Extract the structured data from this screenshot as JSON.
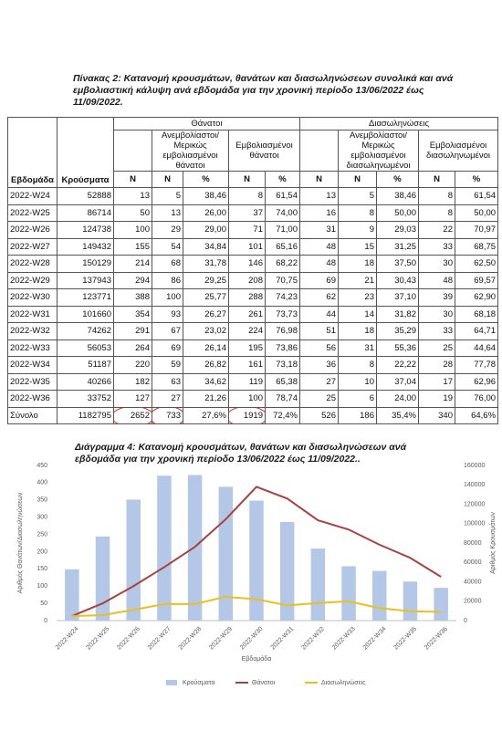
{
  "document": {
    "table_title": "Πίνακας 2: Κατανομή κρουσμάτων, θανάτων και διασωληνώσεων  συνολικά και ανά εμβολιαστική κάλυψη ανά εβδομάδα για την χρονική περίοδο 13/06/2022 έως 11/09/2022.",
    "table": {
      "header": {
        "week": "Εβδομάδα",
        "cases": "Κρούσματα",
        "deaths": "Θάνατοι",
        "intubations": "Διασωληνώσεις",
        "sub": [
          "Ανεμβολίαστοι/ Μερικώς εμβολιασμένοι θάνατοι",
          "Εμβολιασμένοι θάνατοι",
          "Ανεμβολίαστοι/ Μερικώς εμβολιασμένοι διασωληνωμένοι",
          "Εμβολιασμένοι διασωληνωμένοι"
        ],
        "units": [
          "N",
          "N",
          "%",
          "N",
          "%",
          "N",
          "N",
          "%",
          "N",
          "%"
        ]
      },
      "rows": [
        [
          "2022-W24",
          "52888",
          "13",
          "5",
          "38,46",
          "8",
          "61,54",
          "13",
          "5",
          "38,46",
          "8",
          "61,54"
        ],
        [
          "2022-W25",
          "86714",
          "50",
          "13",
          "26,00",
          "37",
          "74,00",
          "16",
          "8",
          "50,00",
          "8",
          "50,00"
        ],
        [
          "2022-W26",
          "124738",
          "100",
          "29",
          "29,00",
          "71",
          "71,00",
          "31",
          "9",
          "29,03",
          "22",
          "70,97"
        ],
        [
          "2022-W27",
          "149432",
          "155",
          "54",
          "34,84",
          "101",
          "65,16",
          "48",
          "15",
          "31,25",
          "33",
          "68,75"
        ],
        [
          "2022-W28",
          "150129",
          "214",
          "68",
          "31,78",
          "146",
          "68,22",
          "48",
          "18",
          "37,50",
          "30",
          "62,50"
        ],
        [
          "2022-W29",
          "137943",
          "294",
          "86",
          "29,25",
          "208",
          "70,75",
          "69",
          "21",
          "30,43",
          "48",
          "69,57"
        ],
        [
          "2022-W30",
          "123771",
          "388",
          "100",
          "25,77",
          "288",
          "74,23",
          "62",
          "23",
          "37,10",
          "39",
          "62,90"
        ],
        [
          "2022-W31",
          "101660",
          "354",
          "93",
          "26,27",
          "261",
          "73,73",
          "44",
          "14",
          "31,82",
          "30",
          "68,18"
        ],
        [
          "2022-W32",
          "74262",
          "291",
          "67",
          "23,02",
          "224",
          "76,98",
          "51",
          "18",
          "35,29",
          "33",
          "64,71"
        ],
        [
          "2022-W33",
          "56053",
          "264",
          "69",
          "26,14",
          "195",
          "73,86",
          "56",
          "31",
          "55,36",
          "25",
          "44,64"
        ],
        [
          "2022-W34",
          "51187",
          "220",
          "59",
          "26,82",
          "161",
          "73,18",
          "36",
          "8",
          "22,22",
          "28",
          "77,78"
        ],
        [
          "2022-W35",
          "40266",
          "182",
          "63",
          "34,62",
          "119",
          "65,38",
          "27",
          "10",
          "37,04",
          "17",
          "62,96"
        ],
        [
          "2022-W36",
          "33752",
          "127",
          "27",
          "21,26",
          "100",
          "78,74",
          "25",
          "6",
          "24,00",
          "19",
          "76,00"
        ],
        [
          "Σύνολο",
          "1182795",
          "2652",
          "733",
          "27,6%",
          "1919",
          "72,4%",
          "526",
          "186",
          "35,4%",
          "340",
          "64,6%"
        ]
      ]
    }
  },
  "chart_data": {
    "type": "bar",
    "title": "Διάγραμμα 4: Κατανομή κρουσμάτων, θανάτων και διασωληνώσεων  ανά εβδομάδα για την χρονική περίοδο 13/06/2022 έως 11/09/2022..",
    "x_label": "Εβδομάδα",
    "y_label": "Αριθμός Θανάτων/Διασωληνώσεων",
    "y2_label": "Αριθμός Κρουσμάτων",
    "categories": [
      "2022-W24",
      "2022-W25",
      "2022-W26",
      "2022-W27",
      "2022-W28",
      "2022-W29",
      "2022-W30",
      "2022-W31",
      "2022-W32",
      "2022-W33",
      "2022-W34",
      "2022-W35",
      "2022-W36"
    ],
    "series": [
      {
        "name": "Κρούσματα",
        "type": "bar",
        "axis": "y2",
        "color": "#b4c7e7",
        "values": [
          52888,
          86714,
          124738,
          149432,
          150129,
          137943,
          123771,
          101660,
          74262,
          56053,
          51187,
          40266,
          33752
        ]
      },
      {
        "name": "Θάνατοι",
        "type": "line",
        "color": "#a8423f",
        "values": [
          13,
          50,
          100,
          155,
          214,
          294,
          388,
          354,
          291,
          264,
          220,
          182,
          127
        ]
      },
      {
        "name": "Διασωληνώσεις",
        "type": "line",
        "color": "#e6c21f",
        "values": [
          13,
          16,
          31,
          48,
          48,
          69,
          62,
          44,
          51,
          56,
          36,
          27,
          25
        ]
      }
    ],
    "ylim": [
      0,
      450
    ],
    "yticks": [
      0,
      50,
      100,
      150,
      200,
      250,
      300,
      350,
      400,
      450
    ],
    "y2lim": [
      0,
      160000
    ],
    "y2ticks": [
      0,
      20000,
      40000,
      60000,
      80000,
      100000,
      120000,
      140000,
      160000
    ],
    "grid": false,
    "legend": "bottom"
  }
}
